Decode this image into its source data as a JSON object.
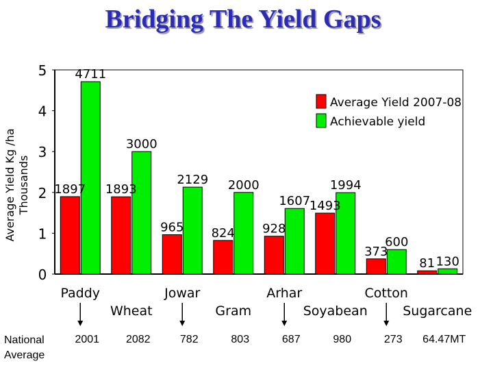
{
  "title": "Bridging The Yield Gaps",
  "chart_data": {
    "type": "bar",
    "ylabel_line1": "Average Yield Kg /ha",
    "ylabel_line2": "Thousands",
    "ylim": [
      0,
      5
    ],
    "yticks": [
      "0",
      "1",
      "2",
      "3",
      "4",
      "5"
    ],
    "grid": false,
    "legend_position": "top-right",
    "categories": [
      "Paddy",
      "Wheat",
      "Jowar",
      "Gram",
      "Arhar",
      "Soyabean",
      "Cotton",
      "Sugarcane"
    ],
    "series": [
      {
        "name": "Average Yield 2007-08",
        "color": "#ff0000",
        "values": [
          1.897,
          1.893,
          0.965,
          0.824,
          0.928,
          1.493,
          0.373,
          0.081
        ],
        "labels": [
          "1897",
          "1893",
          "965",
          "824",
          "928",
          "1493",
          "373",
          "81"
        ]
      },
      {
        "name": "Achievable yield",
        "color": "#00ee00",
        "values": [
          4.711,
          3.0,
          2.129,
          2.0,
          1.607,
          1.994,
          0.6,
          0.13
        ],
        "labels": [
          "4711",
          "3000",
          "2129",
          "2000",
          "1607",
          "1994",
          "600",
          "130"
        ]
      }
    ]
  },
  "national_average": {
    "label_line1": "National",
    "label_line2": "Average",
    "values": [
      "2001",
      "2082",
      "782",
      "803",
      "687",
      "980",
      "273",
      "64.47MT"
    ]
  }
}
